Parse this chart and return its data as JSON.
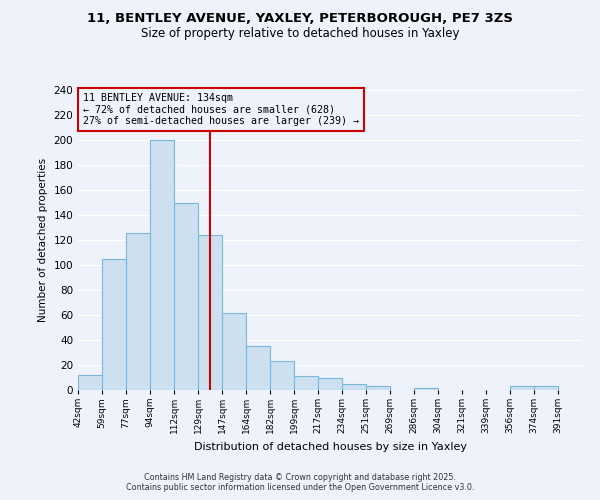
{
  "title_line1": "11, BENTLEY AVENUE, YAXLEY, PETERBOROUGH, PE7 3ZS",
  "title_line2": "Size of property relative to detached houses in Yaxley",
  "xlabel": "Distribution of detached houses by size in Yaxley",
  "ylabel": "Number of detached properties",
  "bin_labels": [
    "42sqm",
    "59sqm",
    "77sqm",
    "94sqm",
    "112sqm",
    "129sqm",
    "147sqm",
    "164sqm",
    "182sqm",
    "199sqm",
    "217sqm",
    "234sqm",
    "251sqm",
    "269sqm",
    "286sqm",
    "304sqm",
    "321sqm",
    "339sqm",
    "356sqm",
    "374sqm",
    "391sqm"
  ],
  "bar_heights": [
    12,
    105,
    126,
    200,
    150,
    124,
    62,
    35,
    23,
    11,
    10,
    5,
    3,
    0,
    2,
    0,
    0,
    0,
    3,
    3,
    0
  ],
  "bar_color": "#cce0f0",
  "bar_edge_color": "#7ab8d9",
  "vline_x": 5.5,
  "vline_color": "#cc0000",
  "annotation_title": "11 BENTLEY AVENUE: 134sqm",
  "annotation_line2": "← 72% of detached houses are smaller (628)",
  "annotation_line3": "27% of semi-detached houses are larger (239) →",
  "annotation_box_edgecolor": "#cc0000",
  "ylim": [
    0,
    240
  ],
  "yticks": [
    0,
    20,
    40,
    60,
    80,
    100,
    120,
    140,
    160,
    180,
    200,
    220,
    240
  ],
  "footer_line1": "Contains HM Land Registry data © Crown copyright and database right 2025.",
  "footer_line2": "Contains public sector information licensed under the Open Government Licence v3.0.",
  "bg_color": "#eef2fa",
  "grid_color": "#ffffff"
}
